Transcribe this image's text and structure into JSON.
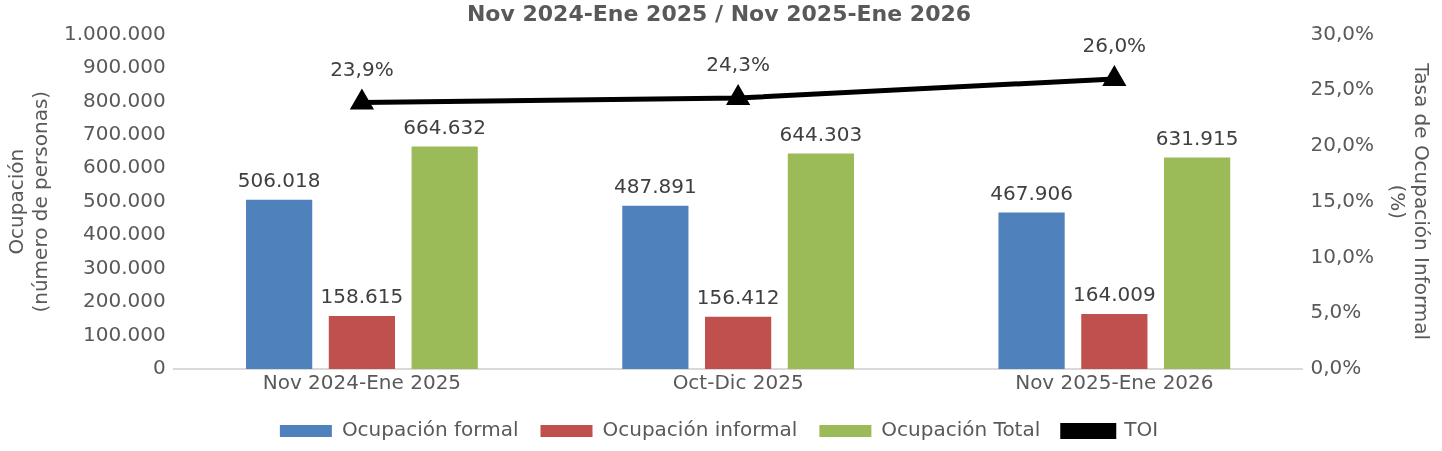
{
  "chart_data": {
    "type": "bar",
    "title": "Nov 2024-Ene 2025 / Nov 2025-Ene 2026",
    "ylabel": "Ocupación\n(número de personas)",
    "y2label": "Tasa de Ocupación Informal\n(%)",
    "categories": [
      "Nov 2024-Ene 2025",
      "Oct-Dic 2025",
      "Nov 2025-Ene 2026"
    ],
    "series": [
      {
        "name": "Ocupación formal",
        "color": "#4f81bd",
        "values": [
          506018,
          487891,
          467906
        ],
        "value_labels": [
          "506.018",
          "487.891",
          "467.906"
        ]
      },
      {
        "name": "Ocupación informal",
        "color": "#c0504d",
        "values": [
          158615,
          156412,
          164009
        ],
        "value_labels": [
          "158.615",
          "156.412",
          "164.009"
        ]
      },
      {
        "name": "Ocupación Total",
        "color": "#9bbb59",
        "values": [
          664632,
          644303,
          631915
        ],
        "value_labels": [
          "664.632",
          "644.303",
          "631.915"
        ]
      },
      {
        "name": "TOI",
        "type": "line",
        "axis": "y2",
        "color": "#000000",
        "marker": "triangle",
        "values": [
          23.9,
          24.3,
          26.0
        ],
        "value_labels": [
          "23,9%",
          "24,3%",
          "26,0%"
        ]
      }
    ],
    "ylim": [
      0,
      1000000
    ],
    "yticks": [
      {
        "value": 0,
        "label": "0"
      },
      {
        "value": 100000,
        "label": "100.000"
      },
      {
        "value": 200000,
        "label": "200.000"
      },
      {
        "value": 300000,
        "label": "300.000"
      },
      {
        "value": 400000,
        "label": "400.000"
      },
      {
        "value": 500000,
        "label": "500.000"
      },
      {
        "value": 600000,
        "label": "600.000"
      },
      {
        "value": 700000,
        "label": "700.000"
      },
      {
        "value": 800000,
        "label": "800.000"
      },
      {
        "value": 900000,
        "label": "900.000"
      },
      {
        "value": 1000000,
        "label": "1.000.000"
      }
    ],
    "y2lim": [
      0,
      30
    ],
    "y2ticks": [
      {
        "value": 0,
        "label": "0,0%"
      },
      {
        "value": 5,
        "label": "5,0%"
      },
      {
        "value": 10,
        "label": "10,0%"
      },
      {
        "value": 15,
        "label": "15,0%"
      },
      {
        "value": 20,
        "label": "20,0%"
      },
      {
        "value": 25,
        "label": "25,0%"
      },
      {
        "value": 30,
        "label": "30,0%"
      }
    ],
    "grid": false,
    "legend": "bottom"
  }
}
